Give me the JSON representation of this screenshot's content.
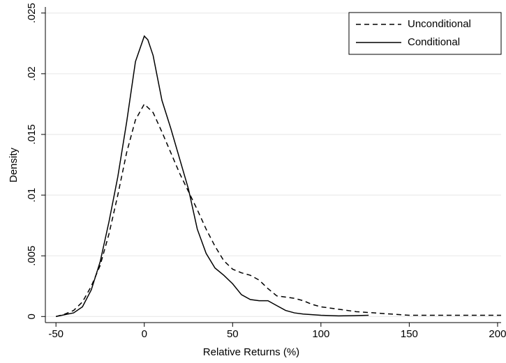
{
  "chart_data": {
    "type": "line",
    "x_label": "Relative Returns (%)",
    "y_label": "Density",
    "xlim": [
      -56,
      202
    ],
    "ylim": [
      -0.0005,
      0.0255
    ],
    "xticks": [
      -50,
      0,
      50,
      100,
      150,
      200
    ],
    "yticks": [
      0,
      {
        "value": 0.005,
        "label": ".005"
      },
      {
        "value": 0.01,
        "label": ".01"
      },
      {
        "value": 0.015,
        "label": ".015"
      },
      {
        "value": 0.02,
        "label": ".02"
      },
      {
        "value": 0.025,
        "label": ".025"
      }
    ],
    "grid": true,
    "legend": "top-right",
    "series": [
      {
        "name": "Unconditional",
        "color": "#000000",
        "dash": true,
        "x": [
          -50,
          -45,
          -40,
          -35,
          -30,
          -25,
          -20,
          -15,
          -10,
          -5,
          0,
          5,
          10,
          15,
          20,
          25,
          30,
          35,
          40,
          45,
          50,
          55,
          60,
          65,
          70,
          75,
          80,
          85,
          90,
          95,
          100,
          110,
          120,
          130,
          140,
          150,
          175,
          200,
          202
        ],
        "values": [
          0,
          0.0002,
          0.0005,
          0.0012,
          0.0025,
          0.0042,
          0.0068,
          0.01,
          0.0135,
          0.0162,
          0.0175,
          0.0168,
          0.0152,
          0.0135,
          0.0118,
          0.0103,
          0.0088,
          0.0072,
          0.0058,
          0.0046,
          0.0039,
          0.0036,
          0.0034,
          0.003,
          0.0023,
          0.0017,
          0.0016,
          0.0015,
          0.0013,
          0.001,
          0.0008,
          0.0006,
          0.0004,
          0.0003,
          0.0002,
          0.0001,
          0.0001,
          0.0001,
          0.0001
        ]
      },
      {
        "name": "Conditional",
        "color": "#000000",
        "dash": false,
        "x": [
          -50,
          -40,
          -35,
          -30,
          -25,
          -20,
          -15,
          -10,
          -5,
          0,
          2,
          5,
          10,
          15,
          20,
          25,
          30,
          35,
          40,
          45,
          50,
          55,
          60,
          65,
          70,
          75,
          80,
          85,
          90,
          100,
          110,
          127
        ],
        "values": [
          0,
          0.0003,
          0.0008,
          0.0022,
          0.0045,
          0.0078,
          0.0115,
          0.016,
          0.021,
          0.0231,
          0.0228,
          0.0215,
          0.0178,
          0.0155,
          0.013,
          0.0105,
          0.0072,
          0.0052,
          0.004,
          0.0034,
          0.0027,
          0.0018,
          0.0014,
          0.0013,
          0.0013,
          0.0009,
          0.0005,
          0.0003,
          0.0002,
          0.0001,
          5e-05,
          0.0001
        ]
      }
    ]
  }
}
